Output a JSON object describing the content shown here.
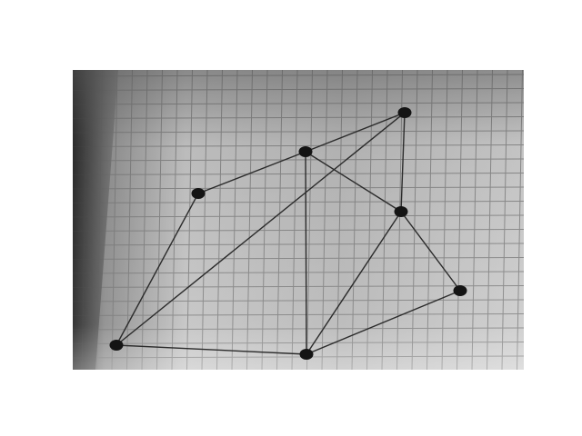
{
  "image": {
    "subject": "photograph-of-string-graph-on-grid-paper",
    "colors": {
      "page_background": "#ffffff",
      "paper_light": "#d2d2d2",
      "paper_dark": "#8a8a8a",
      "grid_line": "#6e6e6e",
      "string": "#2b2b2b",
      "node": "#141414"
    },
    "graph": {
      "node_count": 7,
      "edge_count": 11
    }
  }
}
